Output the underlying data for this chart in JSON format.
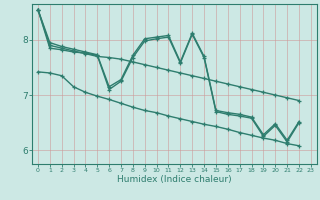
{
  "xlabel": "Humidex (Indice chaleur)",
  "background_color": "#cce8e4",
  "grid_color": "#b0ccc8",
  "line_color": "#2e7d6e",
  "xlim": [
    -0.5,
    23.5
  ],
  "ylim": [
    5.75,
    8.65
  ],
  "xticks": [
    0,
    1,
    2,
    3,
    4,
    5,
    6,
    7,
    8,
    9,
    10,
    11,
    12,
    13,
    14,
    15,
    16,
    17,
    18,
    19,
    20,
    21,
    22,
    23
  ],
  "yticks": [
    6,
    7,
    8
  ],
  "series": [
    [
      8.55,
      7.95,
      7.88,
      7.83,
      7.78,
      7.73,
      7.15,
      7.28,
      7.72,
      8.02,
      8.05,
      8.08,
      7.6,
      8.12,
      7.7,
      6.72,
      6.68,
      6.65,
      6.6,
      6.28,
      6.48,
      6.18,
      6.52
    ],
    [
      8.55,
      7.9,
      7.85,
      7.8,
      7.75,
      7.7,
      7.68,
      7.65,
      7.6,
      7.55,
      7.5,
      7.45,
      7.4,
      7.35,
      7.3,
      7.25,
      7.2,
      7.15,
      7.1,
      7.05,
      7.0,
      6.95,
      6.9
    ],
    [
      7.42,
      7.4,
      7.35,
      7.15,
      7.05,
      6.98,
      6.92,
      6.85,
      6.78,
      6.72,
      6.68,
      6.62,
      6.57,
      6.52,
      6.47,
      6.43,
      6.38,
      6.32,
      6.27,
      6.22,
      6.18,
      6.12,
      6.08
    ],
    [
      8.55,
      7.85,
      7.82,
      7.78,
      7.76,
      7.72,
      7.1,
      7.25,
      7.68,
      7.98,
      8.02,
      8.05,
      7.58,
      8.1,
      7.68,
      6.7,
      6.65,
      6.62,
      6.58,
      6.25,
      6.45,
      6.15,
      6.5
    ]
  ],
  "marker": "+",
  "markersize": 3.5,
  "linewidth": 1.0
}
